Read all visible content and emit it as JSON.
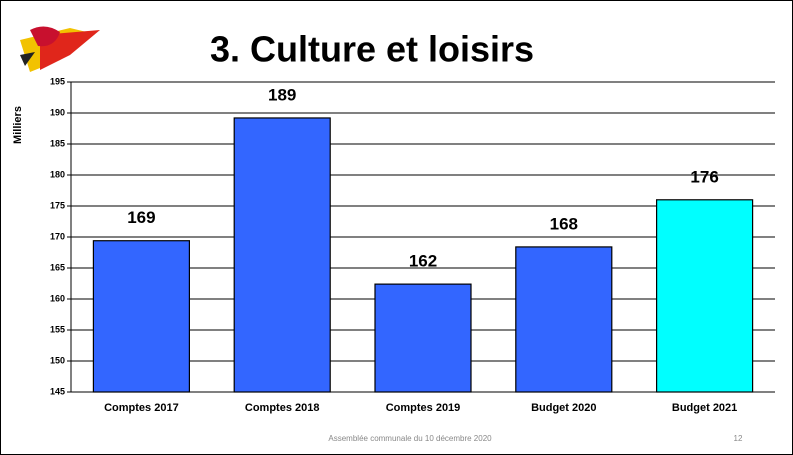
{
  "chart_data": {
    "type": "bar",
    "title": "3. Culture et loisirs",
    "y_axis_label": "Milliers",
    "categories": [
      "Comptes 2017",
      "Comptes 2018",
      "Comptes 2019",
      "Budget 2020",
      "Budget 2021"
    ],
    "values": [
      169.4,
      189.2,
      162.4,
      168.4,
      176.0
    ],
    "value_labels": [
      "169",
      "189",
      "162",
      "168",
      "176"
    ],
    "colors": [
      "#3366ff",
      "#3366ff",
      "#3366ff",
      "#3366ff",
      "#00ffff"
    ],
    "ylim": [
      145,
      195
    ],
    "yticks": [
      145,
      150,
      155,
      160,
      165,
      170,
      175,
      180,
      185,
      190,
      195
    ],
    "grid": true,
    "footer": "Assemblée communale du 10 décembre 2020",
    "page_number": "12"
  }
}
